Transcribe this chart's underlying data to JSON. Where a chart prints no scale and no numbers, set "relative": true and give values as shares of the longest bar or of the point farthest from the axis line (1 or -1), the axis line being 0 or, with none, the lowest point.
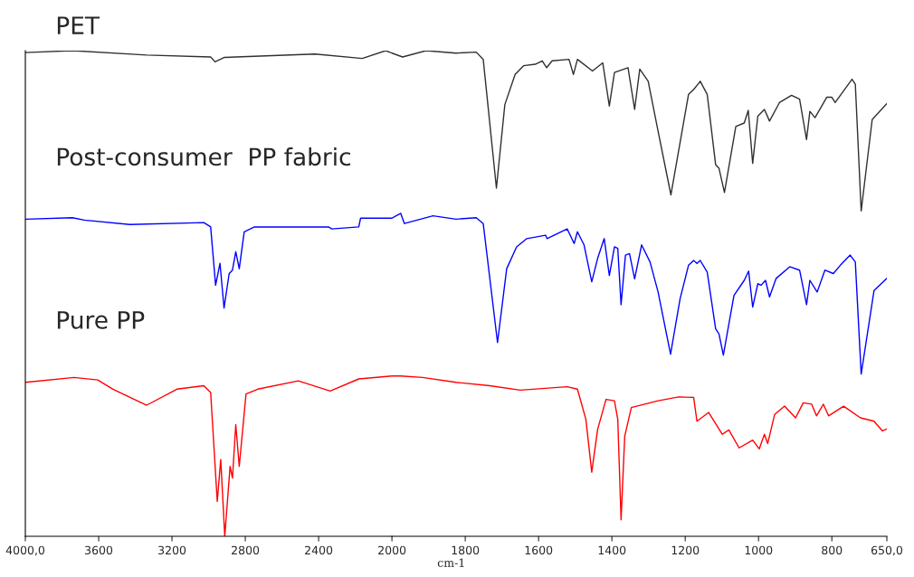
{
  "chart_data": [
    {
      "type": "line",
      "relative": true,
      "xlim": [
        4000,
        2000
      ],
      "xticks": [
        {
          "value": 4000,
          "label": "4000,0"
        },
        3600,
        3200,
        2800,
        2400,
        2000
      ],
      "legend": false,
      "marker": "none",
      "line_style": "solid",
      "series": [
        {
          "name": "PET",
          "color": "#303030",
          "x": [
            4000,
            3743,
            3338,
            2989,
            2965,
            2916,
            2420,
            2162,
            2034,
            2000
          ],
          "values": [
            0.996,
            1.0,
            0.991,
            0.987,
            0.977,
            0.986,
            0.993,
            0.984,
            1.0,
            0.995
          ]
        },
        {
          "name": "Post-consumer  PP fabric",
          "color": "#0000ff",
          "x": [
            4000,
            3743,
            3678,
            3430,
            3026,
            2989,
            2962,
            2938,
            2916,
            2888,
            2870,
            2852,
            2833,
            2806,
            2750,
            2346,
            2328,
            2181,
            2171,
            2034,
            2000
          ],
          "values": [
            0.653,
            0.656,
            0.651,
            0.642,
            0.646,
            0.637,
            0.517,
            0.562,
            0.47,
            0.541,
            0.548,
            0.586,
            0.551,
            0.627,
            0.637,
            0.637,
            0.633,
            0.637,
            0.655,
            0.655,
            0.655
          ]
        },
        {
          "name": "Pure PP",
          "color": "#ff0000",
          "x": [
            4000,
            3734,
            3605,
            3522,
            3338,
            3173,
            3026,
            2989,
            2953,
            2934,
            2912,
            2883,
            2870,
            2852,
            2833,
            2796,
            2732,
            2511,
            2337,
            2181,
            2000
          ],
          "values": [
            0.317,
            0.327,
            0.322,
            0.303,
            0.27,
            0.303,
            0.31,
            0.296,
            0.072,
            0.158,
            0.0,
            0.144,
            0.12,
            0.23,
            0.144,
            0.293,
            0.303,
            0.32,
            0.299,
            0.324,
            0.33
          ]
        }
      ]
    },
    {
      "type": "line",
      "relative": true,
      "xlabel": "cm-1",
      "xlim": [
        2000,
        650
      ],
      "xticks": [
        1800,
        1600,
        1400,
        1200,
        1000,
        800,
        {
          "value": 650,
          "label": "650,0"
        }
      ],
      "legend": false,
      "marker": "none",
      "line_style": "solid",
      "series": [
        {
          "color": "#303030",
          "x": [
            2000,
            1971,
            1907,
            1825,
            1770,
            1751,
            1715,
            1692,
            1664,
            1641,
            1609,
            1590,
            1578,
            1563,
            1517,
            1505,
            1494,
            1453,
            1425,
            1407,
            1393,
            1356,
            1338,
            1324,
            1301,
            1274,
            1239,
            1191,
            1177,
            1159,
            1140,
            1117,
            1108,
            1093,
            1062,
            1039,
            1028,
            1016,
            1002,
            984,
            970,
            943,
            910,
            888,
            869,
            860,
            846,
            814,
            800,
            791,
            745,
            736,
            720,
            690,
            650
          ],
          "values": [
            0.995,
            0.987,
            1.0,
            0.995,
            0.997,
            0.982,
            0.717,
            0.889,
            0.951,
            0.969,
            0.972,
            0.979,
            0.965,
            0.979,
            0.982,
            0.951,
            0.982,
            0.958,
            0.975,
            0.886,
            0.955,
            0.965,
            0.879,
            0.962,
            0.937,
            0.834,
            0.703,
            0.91,
            0.92,
            0.937,
            0.91,
            0.765,
            0.758,
            0.708,
            0.844,
            0.851,
            0.877,
            0.768,
            0.865,
            0.879,
            0.855,
            0.893,
            0.908,
            0.9,
            0.817,
            0.875,
            0.862,
            0.904,
            0.904,
            0.893,
            0.941,
            0.931,
            0.67,
            0.858,
            0.891
          ]
        },
        {
          "color": "#0000ff",
          "x": [
            2000,
            1976,
            1966,
            1888,
            1825,
            1770,
            1751,
            1712,
            1687,
            1660,
            1632,
            1581,
            1577,
            1522,
            1503,
            1494,
            1476,
            1455,
            1439,
            1421,
            1407,
            1393,
            1384,
            1375,
            1363,
            1352,
            1338,
            1319,
            1296,
            1274,
            1240,
            1214,
            1191,
            1177,
            1168,
            1159,
            1140,
            1117,
            1108,
            1096,
            1067,
            1039,
            1027,
            1016,
            1002,
            993,
            981,
            970,
            952,
            915,
            888,
            869,
            860,
            840,
            819,
            796,
            777,
            750,
            736,
            720,
            685,
            650
          ],
          "values": [
            0.655,
            0.665,
            0.644,
            0.66,
            0.653,
            0.656,
            0.644,
            0.399,
            0.551,
            0.596,
            0.613,
            0.62,
            0.613,
            0.633,
            0.603,
            0.627,
            0.6,
            0.524,
            0.572,
            0.613,
            0.537,
            0.596,
            0.593,
            0.477,
            0.579,
            0.582,
            0.53,
            0.6,
            0.565,
            0.503,
            0.375,
            0.489,
            0.558,
            0.568,
            0.562,
            0.568,
            0.544,
            0.427,
            0.417,
            0.373,
            0.496,
            0.527,
            0.546,
            0.472,
            0.52,
            0.517,
            0.527,
            0.493,
            0.531,
            0.555,
            0.548,
            0.477,
            0.527,
            0.503,
            0.548,
            0.541,
            0.558,
            0.579,
            0.565,
            0.334,
            0.506,
            0.531
          ]
        },
        {
          "color": "#ff0000",
          "x": [
            2000,
            1976,
            1916,
            1825,
            1733,
            1650,
            1522,
            1494,
            1471,
            1455,
            1439,
            1416,
            1393,
            1384,
            1375,
            1365,
            1347,
            1274,
            1218,
            1177,
            1168,
            1136,
            1099,
            1081,
            1053,
            1016,
            998,
            984,
            975,
            956,
            929,
            899,
            878,
            855,
            842,
            823,
            809,
            768,
            722,
            685,
            662,
            650
          ],
          "values": [
            0.33,
            0.33,
            0.327,
            0.317,
            0.31,
            0.301,
            0.308,
            0.303,
            0.241,
            0.132,
            0.22,
            0.282,
            0.279,
            0.241,
            0.034,
            0.206,
            0.265,
            0.279,
            0.287,
            0.286,
            0.237,
            0.255,
            0.21,
            0.219,
            0.182,
            0.198,
            0.18,
            0.21,
            0.191,
            0.251,
            0.268,
            0.244,
            0.275,
            0.272,
            0.248,
            0.272,
            0.248,
            0.268,
            0.244,
            0.237,
            0.217,
            0.221
          ]
        }
      ]
    }
  ]
}
